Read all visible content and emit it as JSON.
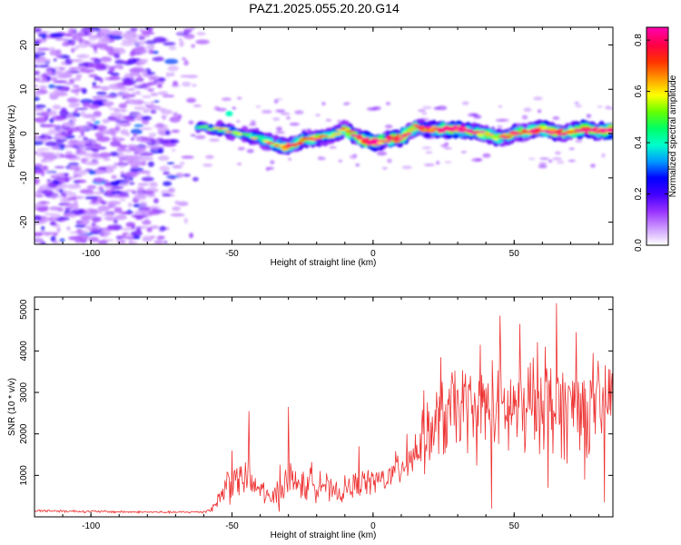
{
  "title": "PAZ1.2025.055.20.20.G14",
  "chart_data": [
    {
      "type": "heatmap",
      "title": "PAZ1.2025.055.20.20.G14",
      "xlabel": "Height of straight line (km)",
      "ylabel": "Frequency (Hz)",
      "xlim": [
        -120,
        85
      ],
      "ylim": [
        -25,
        24
      ],
      "xticks": [
        -100,
        -50,
        0,
        50
      ],
      "yticks": [
        -20,
        -10,
        0,
        10,
        20
      ],
      "colorbar": {
        "label": "Normalized spectral amplitude",
        "range": [
          0,
          0.85
        ],
        "ticks": [
          "0.0",
          "0.2",
          "0.4",
          "0.6",
          "0.8"
        ],
        "colors": [
          "#ffffff",
          "#cc99ff",
          "#9933ff",
          "#4400ff",
          "#0000ff",
          "#0099ff",
          "#00ffcc",
          "#00ff66",
          "#66ff00",
          "#ffff00",
          "#ff9900",
          "#ff3300",
          "#ff0044",
          "#ff00aa"
        ]
      },
      "ridge": {
        "x": [
          -62,
          -55,
          -50,
          -45,
          -40,
          -35,
          -30,
          -25,
          -20,
          -15,
          -10,
          -5,
          0,
          5,
          10,
          15,
          20,
          25,
          30,
          35,
          40,
          45,
          50,
          55,
          60,
          65,
          70,
          75,
          80,
          85
        ],
        "freq": [
          1.5,
          1.0,
          0.5,
          -0.5,
          -1.0,
          -2.5,
          -3.0,
          -1.5,
          -1.0,
          -0.5,
          1.0,
          -1.0,
          -2.0,
          -1.5,
          -1.0,
          1.5,
          1.0,
          1.0,
          1.0,
          0.5,
          0.0,
          -1.0,
          0.0,
          0.5,
          1.0,
          0.0,
          0.5,
          1.0,
          0.5,
          1.0
        ],
        "amplitude": [
          0.3,
          0.35,
          0.4,
          0.35,
          0.4,
          0.5,
          0.55,
          0.5,
          0.55,
          0.45,
          0.5,
          0.6,
          0.85,
          0.6,
          0.75,
          0.55,
          0.6,
          0.7,
          0.75,
          0.6,
          0.55,
          0.5,
          0.6,
          0.6,
          0.7,
          0.65,
          0.6,
          0.75,
          0.7,
          0.85
        ]
      },
      "noise_region": {
        "x_range": [
          -120,
          -60
        ],
        "amplitude": "0.1–0.3"
      }
    },
    {
      "type": "line",
      "xlabel": "Height of straight line (km)",
      "ylabel": "SNR (10 * v/v)",
      "xlim": [
        -120,
        85
      ],
      "ylim": [
        0,
        5300
      ],
      "xticks": [
        -100,
        -50,
        0,
        50
      ],
      "yticks": [
        1000,
        2000,
        3000,
        4000,
        5000
      ],
      "color": "#ee3333",
      "series": [
        {
          "x": [
            -120,
            -110,
            -100,
            -90,
            -80,
            -70,
            -60,
            -57,
            -54,
            -51,
            -48,
            -45,
            -42,
            -39,
            -36,
            -33,
            -30,
            -27,
            -24,
            -21,
            -18,
            -15,
            -12,
            -9,
            -6,
            -3,
            0,
            3,
            6,
            9,
            12,
            15,
            18,
            21,
            24,
            27,
            30,
            33,
            36,
            39,
            42,
            45,
            48,
            51,
            54,
            57,
            60,
            63,
            66,
            69,
            72,
            75,
            78,
            81,
            84
          ],
          "mean": [
            150,
            140,
            130,
            120,
            115,
            110,
            120,
            200,
            500,
            900,
            850,
            950,
            700,
            650,
            350,
            800,
            900,
            850,
            700,
            900,
            850,
            600,
            550,
            700,
            750,
            850,
            850,
            900,
            950,
            1200,
            1350,
            1600,
            1800,
            2100,
            2300,
            2500,
            2600,
            2700,
            2400,
            2600,
            2700,
            2600,
            2500,
            2700,
            2400,
            2800,
            2900,
            2600,
            2700,
            2500,
            2800,
            2600,
            2400,
            2700,
            2900
          ],
          "spread": [
            40,
            40,
            35,
            35,
            30,
            30,
            40,
            100,
            300,
            700,
            500,
            600,
            400,
            400,
            200,
            700,
            600,
            500,
            400,
            600,
            500,
            350,
            300,
            400,
            400,
            400,
            400,
            400,
            450,
            550,
            600,
            750,
            900,
            1100,
            1200,
            1300,
            1300,
            1300,
            1300,
            1300,
            1400,
            1400,
            1400,
            1400,
            1500,
            1500,
            1500,
            1500,
            1500,
            1400,
            1400,
            1300,
            1300,
            1300,
            1300
          ],
          "peaks": [
            [
              -50,
              1600
            ],
            [
              -44,
              2550
            ],
            [
              -30,
              2650
            ],
            [
              -5,
              1700
            ],
            [
              12,
              2000
            ],
            [
              18,
              3050
            ],
            [
              24,
              3850
            ],
            [
              38,
              4150
            ],
            [
              45,
              4850
            ],
            [
              52,
              4650
            ],
            [
              61,
              4100
            ],
            [
              65,
              5150
            ],
            [
              72,
              4450
            ],
            [
              78,
              3950
            ],
            [
              82,
              4150
            ]
          ],
          "dips": [
            [
              42,
              200
            ],
            [
              62,
              700
            ],
            [
              75,
              900
            ],
            [
              82,
              350
            ]
          ]
        }
      ]
    }
  ]
}
